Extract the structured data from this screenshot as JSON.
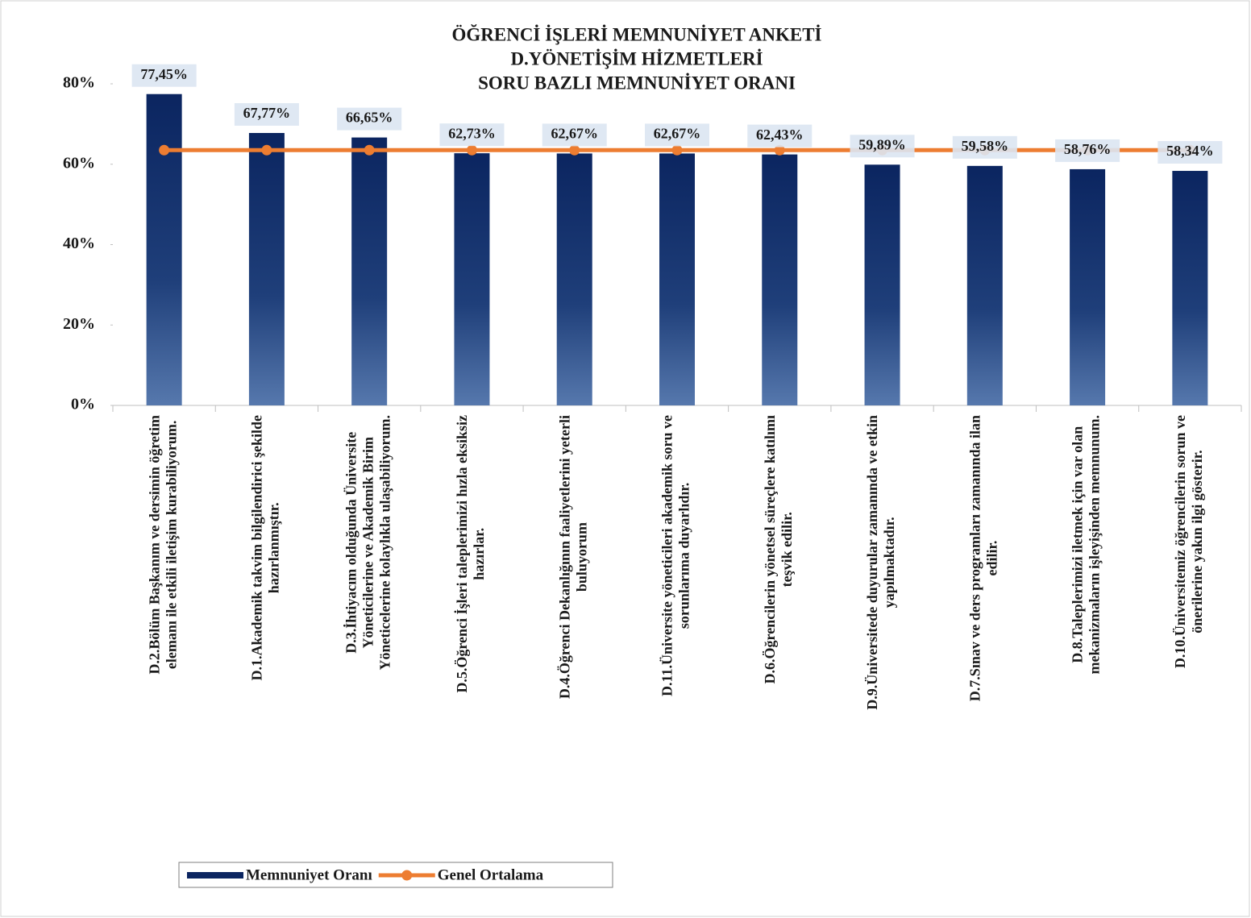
{
  "chart_data": {
    "type": "bar_line",
    "title": [
      "ÖĞRENCİ İŞLERİ MEMNUNİYET ANKETİ",
      "D.YÖNETİŞİM HİZMETLERİ",
      "SORU BAZLI MEMNUNİYET ORANI"
    ],
    "categories": [
      [
        "D.2.Bölüm Başkanım ve dersimin öğretim",
        "elemanı ile etkili iletişim kurabiliyorum."
      ],
      [
        "D.1.Akademik takvim bilgilendirici şekilde",
        "hazırlanmıştır."
      ],
      [
        "D.3.İhtiyacım olduğunda Üniversite",
        "Yöneticilerine ve Akademik Birim",
        "Yöneticelerine kolaylıkla ulaşabiliyorum."
      ],
      [
        "D.5.Öğrenci İşleri taleplerimizi hızla eksiksiz",
        "hazırlar."
      ],
      [
        "D.4.Öğrenci Dekanlığının faaliyetlerini yeterli",
        "buluyorum"
      ],
      [
        "D.11.Üniversite yöneticileri akademik soru ve",
        "sorunlarıma duyarlıdır."
      ],
      [
        "D.6.Öğrencilerin yönetsel süreçlere katılımı",
        "teşvik edilir."
      ],
      [
        "D.9.Üniversitede duyurular zamanında ve etkin",
        "yapılmaktadır."
      ],
      [
        "D.7.Sınav ve ders programları zamanında ilan",
        "edilir."
      ],
      [
        "D.8.Taleplerimizi iletmek için var olan",
        "mekanizmaların işleyişinden memnunum."
      ],
      [
        "D.10.Üniversitemiz öğrencilerin sorun ve",
        "önerilerine yakın ilgi gösterir."
      ]
    ],
    "series": [
      {
        "name": "Memnuniyet Oranı",
        "type": "bar",
        "color": "#0b2560",
        "values": [
          77.45,
          67.77,
          66.65,
          62.73,
          62.67,
          62.67,
          62.43,
          59.89,
          59.58,
          58.76,
          58.34
        ],
        "value_labels": [
          "77,45%",
          "67,77%",
          "66,65%",
          "62,73%",
          "62,67%",
          "62,67%",
          "62,43%",
          "59,89%",
          "59,58%",
          "58,76%",
          "58,34%"
        ]
      },
      {
        "name": "Genel Ortalama",
        "type": "line",
        "color": "#ed7d31",
        "values": [
          63.5,
          63.5,
          63.5,
          63.5,
          63.5,
          63.5,
          63.5,
          63.5,
          63.5,
          63.5,
          63.5
        ]
      }
    ],
    "ylim": [
      0,
      80
    ],
    "yticks": [
      {
        "value": 0,
        "label": "0%"
      },
      {
        "value": 20,
        "label": "20%"
      },
      {
        "value": 40,
        "label": "40%"
      },
      {
        "value": 60,
        "label": "60%"
      },
      {
        "value": 80,
        "label": "80%"
      }
    ],
    "legend": "bottom-left"
  }
}
